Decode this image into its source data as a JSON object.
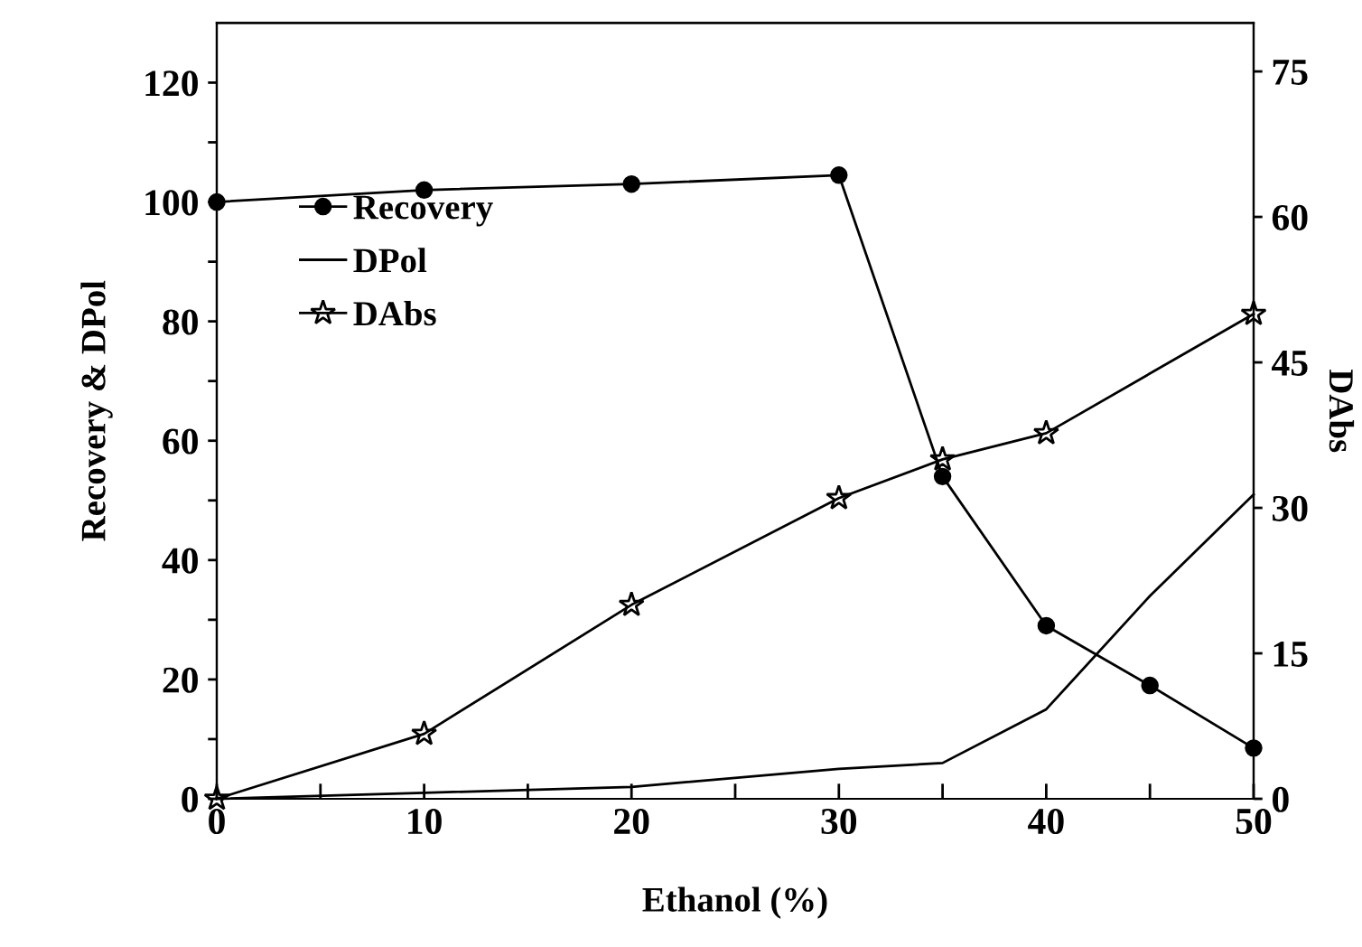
{
  "chart_data": {
    "type": "line",
    "xlabel": "Ethanol (%)",
    "ylabel": "Recovery & DPol",
    "y2label": "DAbs",
    "x": [
      0,
      10,
      20,
      30,
      35,
      40,
      45,
      50
    ],
    "series": [
      {
        "name": "Recovery",
        "color": "#000000",
        "marker": "circle",
        "values": [
          100,
          102,
          103,
          104.5,
          54,
          29,
          19,
          8.5
        ]
      },
      {
        "name": "DPol",
        "color": "#000000",
        "marker": "none",
        "values": [
          0,
          1,
          2,
          5,
          6,
          15,
          34,
          51
        ]
      },
      {
        "name": "DAbs",
        "color": "#000000",
        "marker": "star",
        "axis": "y2",
        "x": [
          0,
          10,
          20,
          30,
          35,
          40,
          50
        ],
        "values": [
          0,
          6.7,
          20,
          31,
          35,
          37.7,
          50
        ]
      }
    ],
    "xlim": [
      0,
      50
    ],
    "xticks": [
      0,
      {
        "value": 5,
        "label": null
      },
      10,
      {
        "value": 15,
        "label": null
      },
      20,
      {
        "value": 25,
        "label": null
      },
      30,
      {
        "value": 35,
        "label": null
      },
      40,
      {
        "value": 45,
        "label": null
      },
      50
    ],
    "ylim": [
      0,
      130
    ],
    "yticks": [
      0,
      {
        "value": 10,
        "label": null
      },
      20,
      {
        "value": 30,
        "label": null
      },
      40,
      {
        "value": 50,
        "label": null
      },
      60,
      {
        "value": 70,
        "label": null
      },
      80,
      {
        "value": 90,
        "label": null
      },
      100,
      {
        "value": 110,
        "label": null
      },
      120
    ],
    "y2lim": [
      0,
      80
    ],
    "y2ticks": [
      0,
      15,
      30,
      45,
      60,
      75
    ],
    "legend": "upper left",
    "grid": false,
    "line_style": "solid"
  }
}
